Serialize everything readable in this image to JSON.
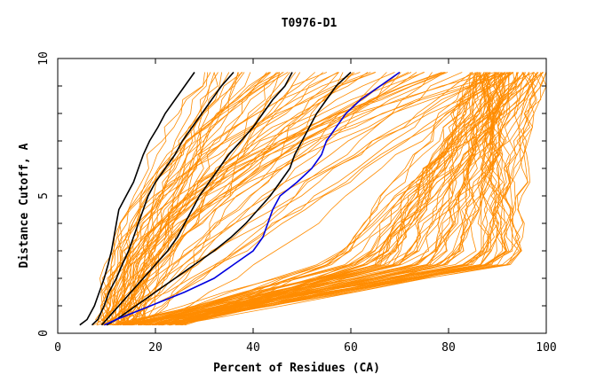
{
  "chart_data": {
    "type": "line",
    "title": "T0976-D1",
    "xlabel": "Percent of Residues (CA)",
    "ylabel": "Distance Cutoff, A",
    "xlim": [
      0,
      100
    ],
    "ylim": [
      0,
      10
    ],
    "xticks": [
      0,
      20,
      40,
      60,
      80,
      100
    ],
    "yticks": [
      0,
      5,
      10
    ],
    "grid": false,
    "colors": {
      "reference_models": "#ff8c00",
      "highlight_models": "#000000",
      "selected_model": "#0000e0"
    },
    "y": [
      0.3,
      0.5,
      1,
      1.5,
      2,
      2.5,
      3,
      3.5,
      4,
      4.5,
      5,
      5.5,
      6,
      6.5,
      7,
      7.5,
      8,
      8.5,
      9,
      9.5
    ],
    "highlight_series": [
      {
        "x": [
          4.5,
          6,
          7.5,
          8.5,
          9.5,
          10.3,
          11,
          11.5,
          12,
          12.5,
          14,
          15.5,
          16.5,
          17.5,
          18.8,
          20.5,
          22,
          24,
          26,
          28
        ]
      },
      {
        "x": [
          7,
          8.2,
          9.5,
          10.5,
          12,
          13.2,
          14.5,
          15.5,
          16.5,
          17.5,
          18.5,
          20,
          22,
          24,
          25.5,
          27.5,
          29.5,
          31.5,
          33.5,
          36
        ]
      },
      {
        "x": [
          9,
          10,
          12.5,
          15,
          17.5,
          20,
          22.5,
          24.5,
          26,
          27.5,
          29,
          31,
          33,
          35,
          37.5,
          40,
          42,
          44,
          46.5,
          48
        ]
      },
      {
        "x": [
          10,
          12,
          16,
          20,
          24,
          28,
          32,
          35.5,
          38.5,
          41,
          43.5,
          45.5,
          47.5,
          48.5,
          50,
          51.5,
          53,
          55,
          57,
          60
        ]
      }
    ],
    "selected_series": {
      "x": [
        9.5,
        12,
        19,
        26,
        32,
        36,
        40,
        42,
        43,
        44,
        45.5,
        49,
        52,
        54,
        55,
        57,
        59,
        62,
        66,
        70
      ]
    }
  }
}
